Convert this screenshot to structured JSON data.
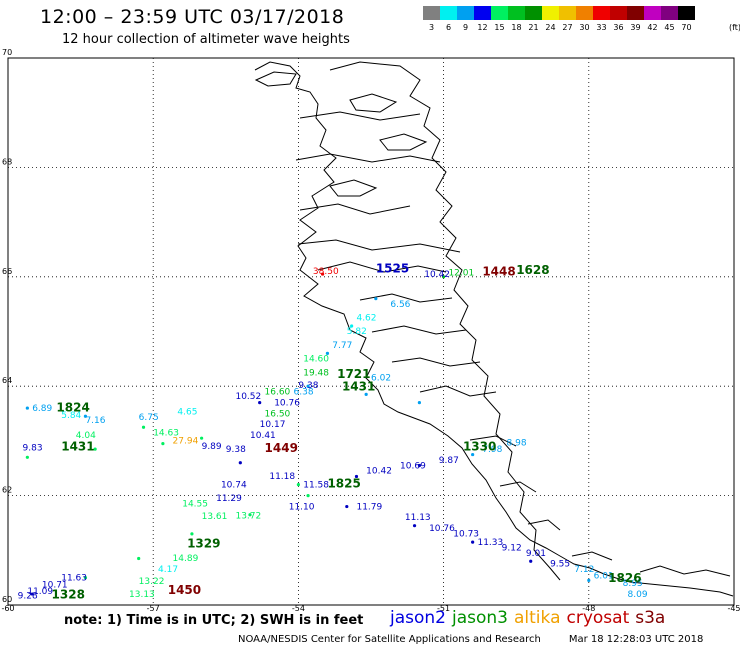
{
  "title": "12:00  –  23:59 UTC 03/17/2018",
  "subtitle": "12 hour collection of altimeter wave heights",
  "legend": {
    "labels": [
      "3",
      "6",
      "9",
      "12",
      "15",
      "18",
      "21",
      "24",
      "27",
      "30",
      "33",
      "36",
      "39",
      "42",
      "45",
      "70"
    ],
    "colors": [
      "#808080",
      "#00f0f0",
      "#00a0f0",
      "#0000f0",
      "#00f060",
      "#00c020",
      "#009000",
      "#f0f000",
      "#f0c000",
      "#f08000",
      "#f00000",
      "#c00000",
      "#800000",
      "#c000c0",
      "#800080",
      "#000000"
    ],
    "unit": "(ft)"
  },
  "axes": {
    "lat_labels": [
      "70",
      "68",
      "66",
      "64",
      "62",
      "60"
    ],
    "lon_labels": [
      "-60",
      "-57",
      "-54",
      "-51",
      "-48",
      "-45"
    ]
  },
  "note": "note: 1) Time is in UTC; 2) SWH is in feet",
  "satellites": [
    {
      "name": "jason2",
      "color": "#0000e0"
    },
    {
      "name": "jason3",
      "color": "#009000"
    },
    {
      "name": "altika",
      "color": "#f0a000"
    },
    {
      "name": "cryosat",
      "color": "#c00000"
    },
    {
      "name": "s3a",
      "color": "#800000"
    }
  ],
  "footer": {
    "credit": "NOAA/NESDIS Center for Satellite Applications and Research",
    "timestamp": "Mar 18 12:28:03 UTC 2018"
  },
  "time_labels": [
    {
      "text": "1824",
      "lon": -59.0,
      "lat": 63.54,
      "color": "#006000"
    },
    {
      "text": "1431",
      "lon": -58.9,
      "lat": 62.82,
      "color": "#006000"
    },
    {
      "text": "1449",
      "lon": -54.7,
      "lat": 62.8,
      "color": "#800000"
    },
    {
      "text": "1329",
      "lon": -56.3,
      "lat": 61.05,
      "color": "#006000"
    },
    {
      "text": "1450",
      "lon": -56.7,
      "lat": 60.2,
      "color": "#800000"
    },
    {
      "text": "1328",
      "lon": -59.1,
      "lat": 60.12,
      "color": "#006000"
    },
    {
      "text": "1825",
      "lon": -53.4,
      "lat": 62.15,
      "color": "#006000"
    },
    {
      "text": "1721",
      "lon": -53.2,
      "lat": 64.15,
      "color": "#006000"
    },
    {
      "text": "1431",
      "lon": -53.1,
      "lat": 63.92,
      "color": "#006000"
    },
    {
      "text": "1525",
      "lon": -52.4,
      "lat": 66.08,
      "color": "#0000c0"
    },
    {
      "text": "1448",
      "lon": -50.2,
      "lat": 66.02,
      "color": "#800000"
    },
    {
      "text": "1628",
      "lon": -49.5,
      "lat": 66.05,
      "color": "#006000"
    },
    {
      "text": "1330",
      "lon": -50.6,
      "lat": 62.82,
      "color": "#006000"
    },
    {
      "text": "1826",
      "lon": -47.6,
      "lat": 60.42,
      "color": "#006000"
    }
  ],
  "swh_labels": [
    {
      "text": "6.89",
      "lon": -59.5,
      "lat": 63.55,
      "color": "#00a0f0"
    },
    {
      "text": "5.84",
      "lon": -58.9,
      "lat": 63.42,
      "color": "#00f0f0"
    },
    {
      "text": "7.16",
      "lon": -58.4,
      "lat": 63.33,
      "color": "#00a0f0"
    },
    {
      "text": "6.75",
      "lon": -57.3,
      "lat": 63.38,
      "color": "#00a0f0"
    },
    {
      "text": "4.65",
      "lon": -56.5,
      "lat": 63.48,
      "color": "#00f0f0"
    },
    {
      "text": "9.83",
      "lon": -59.7,
      "lat": 62.82,
      "color": "#0000c0"
    },
    {
      "text": "4.04",
      "lon": -58.6,
      "lat": 63.05,
      "color": "#00f060"
    },
    {
      "text": "14.63",
      "lon": -57.0,
      "lat": 63.1,
      "color": "#00f060"
    },
    {
      "text": "27.94",
      "lon": -56.6,
      "lat": 62.95,
      "color": "#f0a000"
    },
    {
      "text": "9.89",
      "lon": -56.0,
      "lat": 62.85,
      "color": "#0000c0"
    },
    {
      "text": "10.52",
      "lon": -55.3,
      "lat": 63.77,
      "color": "#0000c0"
    },
    {
      "text": "16.60",
      "lon": -54.7,
      "lat": 63.85,
      "color": "#00c020"
    },
    {
      "text": "10.76",
      "lon": -54.5,
      "lat": 63.65,
      "color": "#0000c0"
    },
    {
      "text": "16.50",
      "lon": -54.7,
      "lat": 63.45,
      "color": "#00c020"
    },
    {
      "text": "10.17",
      "lon": -54.8,
      "lat": 63.25,
      "color": "#0000c0"
    },
    {
      "text": "10.41",
      "lon": -55.0,
      "lat": 63.05,
      "color": "#0000c0"
    },
    {
      "text": "9.38",
      "lon": -55.5,
      "lat": 62.8,
      "color": "#0000c0"
    },
    {
      "text": "10.74",
      "lon": -55.6,
      "lat": 62.15,
      "color": "#0000c0"
    },
    {
      "text": "11.29",
      "lon": -55.7,
      "lat": 61.9,
      "color": "#0000c0"
    },
    {
      "text": "11.18",
      "lon": -54.6,
      "lat": 62.3,
      "color": "#0000c0"
    },
    {
      "text": "11.58",
      "lon": -53.9,
      "lat": 62.15,
      "color": "#0000c0"
    },
    {
      "text": "11.10",
      "lon": -54.2,
      "lat": 61.75,
      "color": "#0000c0"
    },
    {
      "text": "11.79",
      "lon": -52.8,
      "lat": 61.75,
      "color": "#0000c0"
    },
    {
      "text": "11.13",
      "lon": -51.8,
      "lat": 61.55,
      "color": "#0000c0"
    },
    {
      "text": "10.76",
      "lon": -51.3,
      "lat": 61.35,
      "color": "#0000c0"
    },
    {
      "text": "10.73",
      "lon": -50.8,
      "lat": 61.25,
      "color": "#0000c0"
    },
    {
      "text": "11.33",
      "lon": -50.3,
      "lat": 61.1,
      "color": "#0000c0"
    },
    {
      "text": "9.12",
      "lon": -49.8,
      "lat": 61.0,
      "color": "#0000c0"
    },
    {
      "text": "9.01",
      "lon": -49.3,
      "lat": 60.9,
      "color": "#0000c0"
    },
    {
      "text": "9.55",
      "lon": -48.8,
      "lat": 60.7,
      "color": "#0000c0"
    },
    {
      "text": "7.12",
      "lon": -48.3,
      "lat": 60.6,
      "color": "#00a0f0"
    },
    {
      "text": "6.01",
      "lon": -47.9,
      "lat": 60.48,
      "color": "#00a0f0"
    },
    {
      "text": "8.95",
      "lon": -47.3,
      "lat": 60.35,
      "color": "#00a0f0"
    },
    {
      "text": "8.09",
      "lon": -47.2,
      "lat": 60.15,
      "color": "#00a0f0"
    },
    {
      "text": "10.42",
      "lon": -52.6,
      "lat": 62.4,
      "color": "#0000c0"
    },
    {
      "text": "10.69",
      "lon": -51.9,
      "lat": 62.5,
      "color": "#0000c0"
    },
    {
      "text": "9.87",
      "lon": -51.1,
      "lat": 62.6,
      "color": "#0000c0"
    },
    {
      "text": "7.98",
      "lon": -50.2,
      "lat": 62.8,
      "color": "#00a0f0"
    },
    {
      "text": "8.98",
      "lon": -49.7,
      "lat": 62.92,
      "color": "#00a0f0"
    },
    {
      "text": "14.55",
      "lon": -56.4,
      "lat": 61.8,
      "color": "#00f060"
    },
    {
      "text": "13.61",
      "lon": -56.0,
      "lat": 61.57,
      "color": "#00f060"
    },
    {
      "text": "13.72",
      "lon": -55.3,
      "lat": 61.58,
      "color": "#00f060"
    },
    {
      "text": "14.89",
      "lon": -56.6,
      "lat": 60.8,
      "color": "#00f060"
    },
    {
      "text": "4.17",
      "lon": -56.9,
      "lat": 60.6,
      "color": "#00f0f0"
    },
    {
      "text": "13.22",
      "lon": -57.3,
      "lat": 60.38,
      "color": "#00f060"
    },
    {
      "text": "13.13",
      "lon": -57.5,
      "lat": 60.15,
      "color": "#00f060"
    },
    {
      "text": "11.63",
      "lon": -58.9,
      "lat": 60.45,
      "color": "#0000c0"
    },
    {
      "text": "10.71",
      "lon": -59.3,
      "lat": 60.32,
      "color": "#0000c0"
    },
    {
      "text": "11.09",
      "lon": -59.6,
      "lat": 60.2,
      "color": "#0000c0"
    },
    {
      "text": "9.28",
      "lon": -59.8,
      "lat": 60.12,
      "color": "#0000c0"
    },
    {
      "text": "19.48",
      "lon": -53.9,
      "lat": 64.2,
      "color": "#00c020"
    },
    {
      "text": "14.60",
      "lon": -53.9,
      "lat": 64.45,
      "color": "#00f060"
    },
    {
      "text": "7.77",
      "lon": -53.3,
      "lat": 64.7,
      "color": "#00a0f0"
    },
    {
      "text": "5.82",
      "lon": -53.0,
      "lat": 64.95,
      "color": "#00f0f0"
    },
    {
      "text": "4.62",
      "lon": -52.8,
      "lat": 65.2,
      "color": "#00f0f0"
    },
    {
      "text": "6.02",
      "lon": -52.5,
      "lat": 64.1,
      "color": "#00a0f0"
    },
    {
      "text": "9.38",
      "lon": -54.0,
      "lat": 63.97,
      "color": "#0000c0"
    },
    {
      "text": "6.38",
      "lon": -54.1,
      "lat": 63.85,
      "color": "#00a0f0"
    },
    {
      "text": "6.56",
      "lon": -52.1,
      "lat": 65.45,
      "color": "#00a0f0"
    },
    {
      "text": "10.42",
      "lon": -51.4,
      "lat": 66.0,
      "color": "#0000c0"
    },
    {
      "text": "12.01",
      "lon": -50.9,
      "lat": 66.02,
      "color": "#00c020"
    },
    {
      "text": "38.50",
      "lon": -53.7,
      "lat": 66.05,
      "color": "#f00000"
    }
  ],
  "track_points": [
    {
      "lon": -59.6,
      "lat": 63.6,
      "color": "#00a0f0"
    },
    {
      "lon": -58.4,
      "lat": 63.45,
      "color": "#00a0f0"
    },
    {
      "lon": -57.2,
      "lat": 63.25,
      "color": "#00f060"
    },
    {
      "lon": -56.0,
      "lat": 63.05,
      "color": "#00f060"
    },
    {
      "lon": -54.8,
      "lat": 63.7,
      "color": "#0000c0"
    },
    {
      "lon": -53.8,
      "lat": 64.0,
      "color": "#00a0f0"
    },
    {
      "lon": -52.6,
      "lat": 63.85,
      "color": "#00a0f0"
    },
    {
      "lon": -51.5,
      "lat": 63.7,
      "color": "#00a0f0"
    },
    {
      "lon": -59.6,
      "lat": 62.7,
      "color": "#00f060"
    },
    {
      "lon": -58.2,
      "lat": 62.85,
      "color": "#00f060"
    },
    {
      "lon": -56.8,
      "lat": 62.95,
      "color": "#00f060"
    },
    {
      "lon": -55.2,
      "lat": 62.6,
      "color": "#0000c0"
    },
    {
      "lon": -54.0,
      "lat": 62.2,
      "color": "#00f060"
    },
    {
      "lon": -52.8,
      "lat": 62.35,
      "color": "#0000c0"
    },
    {
      "lon": -51.5,
      "lat": 62.55,
      "color": "#0000c0"
    },
    {
      "lon": -50.4,
      "lat": 62.75,
      "color": "#00a0f0"
    },
    {
      "lon": -59.5,
      "lat": 60.2,
      "color": "#0000c0"
    },
    {
      "lon": -58.4,
      "lat": 60.5,
      "color": "#00f060"
    },
    {
      "lon": -57.3,
      "lat": 60.85,
      "color": "#00f060"
    },
    {
      "lon": -56.2,
      "lat": 61.3,
      "color": "#00f060"
    },
    {
      "lon": -55.0,
      "lat": 61.65,
      "color": "#00f060"
    },
    {
      "lon": -53.8,
      "lat": 62.0,
      "color": "#00f060"
    },
    {
      "lon": -53.0,
      "lat": 61.8,
      "color": "#0000c0"
    },
    {
      "lon": -51.6,
      "lat": 61.45,
      "color": "#0000c0"
    },
    {
      "lon": -50.4,
      "lat": 61.15,
      "color": "#0000c0"
    },
    {
      "lon": -49.2,
      "lat": 60.8,
      "color": "#0000c0"
    },
    {
      "lon": -48.0,
      "lat": 60.45,
      "color": "#00a0f0"
    },
    {
      "lon": -53.4,
      "lat": 64.6,
      "color": "#00a0f0"
    },
    {
      "lon": -52.9,
      "lat": 65.1,
      "color": "#00f0f0"
    },
    {
      "lon": -52.4,
      "lat": 65.6,
      "color": "#00a0f0"
    },
    {
      "lon": -53.5,
      "lat": 66.05,
      "color": "#f00000"
    },
    {
      "lon": -51.0,
      "lat": 66.0,
      "color": "#00c020"
    }
  ]
}
